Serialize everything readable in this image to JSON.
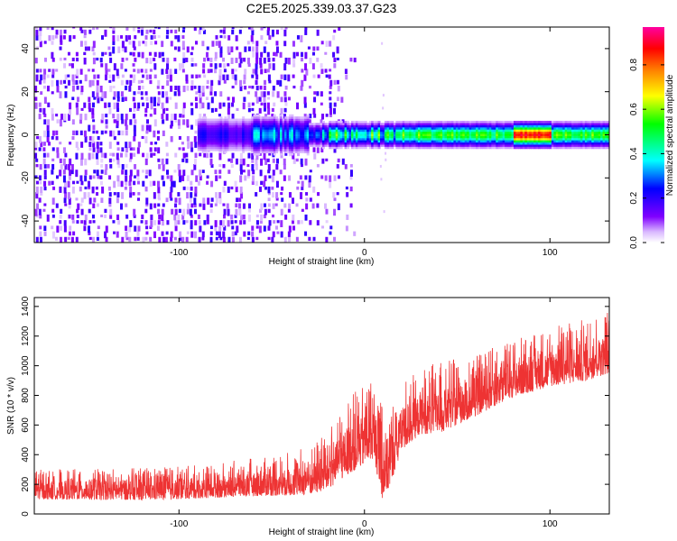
{
  "title": "C2E5.2025.339.03.37.G23",
  "chart_data": [
    {
      "type": "heatmap",
      "xlabel": "Height of straight line (km)",
      "ylabel": "Frequency (Hz)",
      "xlim": [
        -178,
        132
      ],
      "ylim": [
        -50,
        50
      ],
      "x_ticks": [
        -100,
        0,
        100
      ],
      "y_ticks": [
        -40,
        -20,
        0,
        20,
        40
      ],
      "grid": false,
      "description_of_values": {
        "ridge_frequency_hz": 0,
        "noise_region_km": [
          -178,
          -15
        ],
        "ridge_start_km": -60,
        "ridge_peak_band_km": [
          80,
          100
        ]
      },
      "colorbar": {
        "label": "Normalized spectral amplitude",
        "range": [
          0,
          0.97
        ],
        "ticks": [
          0.0,
          0.2,
          0.4,
          0.6,
          0.8
        ],
        "tick_labels": [
          "0.0",
          "0.2",
          "0.4",
          "0.6",
          "0.8"
        ],
        "colormap": [
          "#ffffff",
          "#8000ff",
          "#0000ff",
          "#00ffff",
          "#00ff00",
          "#ffff00",
          "#ff8000",
          "#ff0000",
          "#ff00a0"
        ]
      }
    },
    {
      "type": "line",
      "xlabel": "Height of straight line (km)",
      "ylabel": "SNR (10 * v/v)",
      "xlim": [
        -178,
        132
      ],
      "ylim": [
        0,
        1460
      ],
      "x_ticks": [
        -100,
        0,
        100
      ],
      "y_ticks": [
        0,
        200,
        400,
        600,
        800,
        1000,
        1200,
        1400
      ],
      "grid": false,
      "color": "#ee3333",
      "series": [
        {
          "x": [
            -178,
            -150,
            -120,
            -100,
            -80,
            -60,
            -40,
            -30,
            -20,
            -10,
            0,
            5,
            10,
            13,
            20,
            30,
            40,
            60,
            80,
            100,
            120,
            132
          ],
          "y_low": [
            100,
            95,
            95,
            100,
            110,
            120,
            125,
            130,
            160,
            260,
            330,
            380,
            80,
            170,
            420,
            540,
            540,
            660,
            790,
            860,
            900,
            950
          ],
          "y_high": [
            300,
            310,
            310,
            320,
            340,
            380,
            420,
            460,
            560,
            780,
            880,
            940,
            960,
            720,
            900,
            990,
            1020,
            1080,
            1180,
            1260,
            1330,
            1400
          ]
        }
      ]
    }
  ]
}
